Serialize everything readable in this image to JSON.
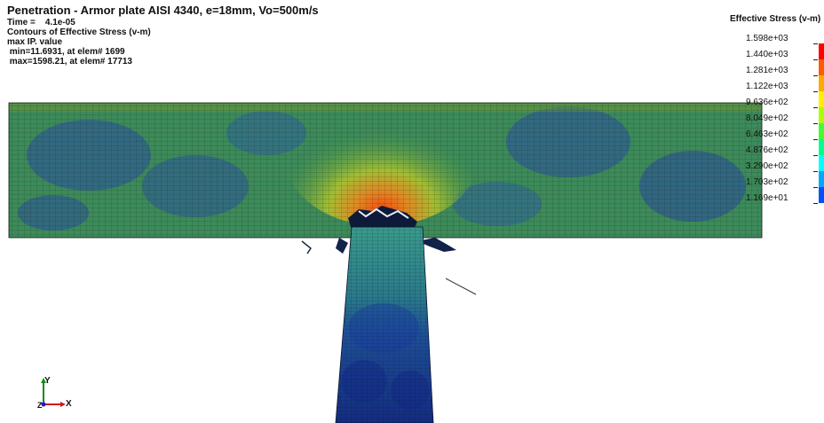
{
  "header": {
    "title": "Penetration - Armor plate AISI 4340, e=18mm, Vo=500m/s",
    "time_line": "Time =    4.1e-05",
    "contours_line": "Contours of Effective Stress (v-m)",
    "value_type": "max IP. value",
    "min_line": " min=11.6931, at elem# 1699",
    "max_line": " max=1598.21, at elem# 17713"
  },
  "legend": {
    "title": "Effective Stress (v-m)",
    "labels": [
      "1.598e+03",
      "1.440e+03",
      "1.281e+03",
      "1.122e+03",
      "9.636e+02",
      "8.049e+02",
      "6.463e+02",
      "4.876e+02",
      "3.290e+02",
      "1.703e+02",
      "1.169e+01"
    ],
    "colors": [
      "#ff0000",
      "#ff5a00",
      "#ffaa00",
      "#fff000",
      "#aaff00",
      "#40ff30",
      "#00ff90",
      "#00ffff",
      "#00a8ff",
      "#0050ff",
      "#0000e0"
    ]
  },
  "axes": {
    "y_label": "Y",
    "x_label": "X",
    "z_label": "Z"
  },
  "colors": {
    "plate_base": "#3d8a5a",
    "projectile_base": "#2f7a7a",
    "low_stress": "#1c3c9a",
    "high_stress": "#e87020"
  }
}
